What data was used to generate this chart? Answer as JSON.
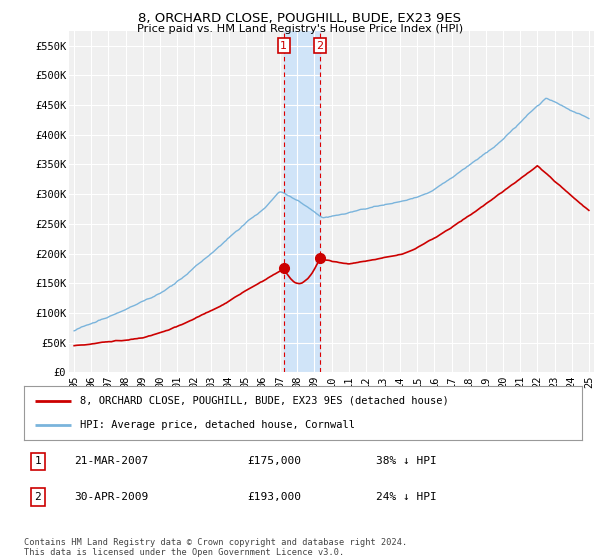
{
  "title": "8, ORCHARD CLOSE, POUGHILL, BUDE, EX23 9ES",
  "subtitle": "Price paid vs. HM Land Registry's House Price Index (HPI)",
  "ylabel_ticks": [
    "£0",
    "£50K",
    "£100K",
    "£150K",
    "£200K",
    "£250K",
    "£300K",
    "£350K",
    "£400K",
    "£450K",
    "£500K",
    "£550K"
  ],
  "ytick_values": [
    0,
    50000,
    100000,
    150000,
    200000,
    250000,
    300000,
    350000,
    400000,
    450000,
    500000,
    550000
  ],
  "xlim_start": 1994.7,
  "xlim_end": 2025.3,
  "ylim_min": 0,
  "ylim_max": 575000,
  "hpi_color": "#7ab4dc",
  "price_color": "#cc0000",
  "transaction1_date": 2007.22,
  "transaction1_price": 175000,
  "transaction2_date": 2009.33,
  "transaction2_price": 193000,
  "shade_color": "#d0e4f8",
  "legend_label1": "8, ORCHARD CLOSE, POUGHILL, BUDE, EX23 9ES (detached house)",
  "legend_label2": "HPI: Average price, detached house, Cornwall",
  "table_row1_num": "1",
  "table_row1_date": "21-MAR-2007",
  "table_row1_price": "£175,000",
  "table_row1_hpi": "38% ↓ HPI",
  "table_row2_num": "2",
  "table_row2_date": "30-APR-2009",
  "table_row2_price": "£193,000",
  "table_row2_hpi": "24% ↓ HPI",
  "footer": "Contains HM Land Registry data © Crown copyright and database right 2024.\nThis data is licensed under the Open Government Licence v3.0.",
  "background_color": "#ffffff",
  "plot_bg_color": "#f0f0f0",
  "grid_color": "#ffffff",
  "xtick_years": [
    1995,
    1996,
    1997,
    1998,
    1999,
    2000,
    2001,
    2002,
    2003,
    2004,
    2005,
    2006,
    2007,
    2008,
    2009,
    2010,
    2011,
    2012,
    2013,
    2014,
    2015,
    2016,
    2017,
    2018,
    2019,
    2020,
    2021,
    2022,
    2023,
    2024,
    2025
  ],
  "xtick_labels": [
    "95",
    "96",
    "97",
    "98",
    "99",
    "00",
    "01",
    "02",
    "03",
    "04",
    "05",
    "06",
    "07",
    "08",
    "09",
    "10",
    "11",
    "12",
    "13",
    "14",
    "15",
    "16",
    "17",
    "18",
    "19",
    "20",
    "21",
    "22",
    "23",
    "24",
    "25"
  ]
}
